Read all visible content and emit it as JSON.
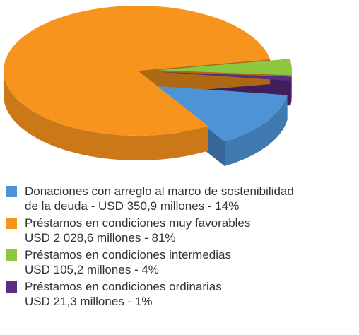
{
  "chart_data": {
    "type": "pie",
    "style": "3d-exploded",
    "categories": [
      "Donaciones con arreglo al marco de sostenibilidad\nde la deuda - USD 350,9 millones - 14%",
      "Préstamos en condiciones muy favorables\nUSD 2 028,6 millones - 81%",
      "Préstamos en condiciones intermedias\nUSD 105,2 millones - 4%",
      "Préstamos en condiciones ordinarias\nUSD 21,3 millones - 1%"
    ],
    "values": [
      14,
      81,
      4,
      1
    ],
    "colors": [
      "#4d93d6",
      "#f7941d",
      "#8dc63f",
      "#5a2d82"
    ],
    "legend": "bottom"
  }
}
